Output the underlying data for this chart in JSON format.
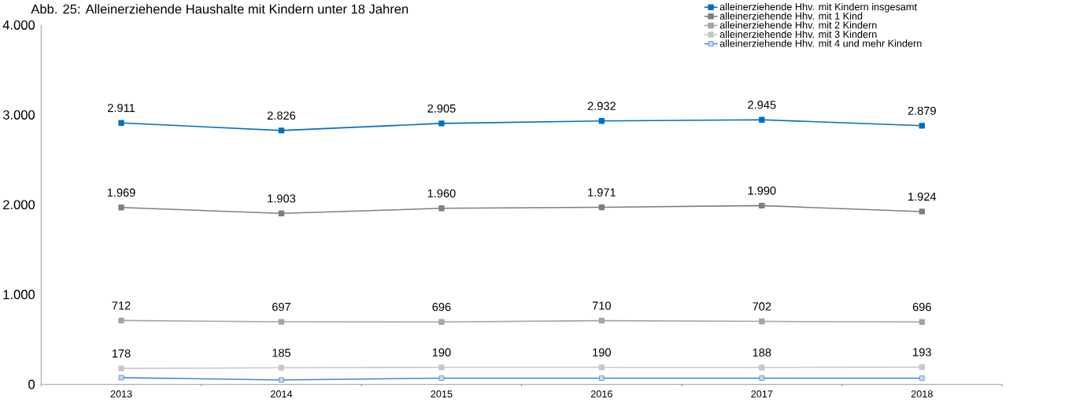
{
  "chart_data": {
    "type": "line",
    "title": "Abb. 25: Alleinerziehende Haushalte mit Kindern unter 18 Jahren",
    "categories": [
      "2013",
      "2014",
      "2015",
      "2016",
      "2017",
      "2018"
    ],
    "series": [
      {
        "name": "alleinerziehende Hhv. mit Kindern insgesamt",
        "color": "#0070c0",
        "values": [
          2911,
          2826,
          2905,
          2932,
          2945,
          2879
        ],
        "value_labels": [
          "2.911",
          "2.826",
          "2.905",
          "2.932",
          "2.945",
          "2.879"
        ]
      },
      {
        "name": "alleinerziehende Hhv. mit 1 Kind",
        "color": "#7f7f7f",
        "values": [
          1969,
          1903,
          1960,
          1971,
          1990,
          1924
        ],
        "value_labels": [
          "1.969",
          "1.903",
          "1.960",
          "1.971",
          "1.990",
          "1.924"
        ]
      },
      {
        "name": "alleinerziehende Hhv. mit 2 Kindern",
        "color": "#a5a5a5",
        "values": [
          712,
          697,
          696,
          710,
          702,
          696
        ],
        "value_labels": [
          "712",
          "697",
          "696",
          "710",
          "702",
          "696"
        ]
      },
      {
        "name": "alleinerziehende Hhv. mit 3 Kindern",
        "color": "#c8c8c8",
        "values": [
          178,
          185,
          190,
          190,
          188,
          193
        ],
        "value_labels": [
          "178",
          "185",
          "190",
          "190",
          "188",
          "193"
        ]
      },
      {
        "name": "alleinerziehende Hhv. mit 4 und mehr Kindern",
        "color": "#4a86d0",
        "values": [
          75,
          50,
          70,
          70,
          70,
          70
        ]
      }
    ],
    "ylim": [
      0,
      4000
    ],
    "yticks": [
      0,
      {
        "value": 1000,
        "label": "1.000"
      },
      {
        "value": 2000,
        "label": "2.000"
      },
      {
        "value": 3000,
        "label": "3.000"
      },
      {
        "value": 4000,
        "label": "4.000"
      }
    ],
    "grid": false,
    "legend": "top right",
    "marker": "square",
    "line_style": "solid"
  }
}
